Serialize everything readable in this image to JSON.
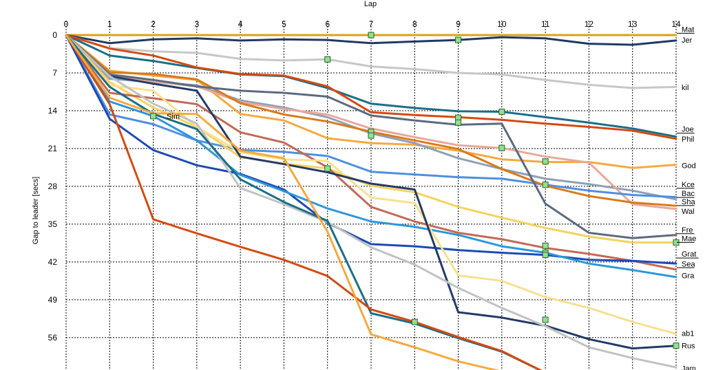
{
  "chart_data": {
    "type": "line",
    "title": "",
    "xlabel": "Lap",
    "ylabel": "Gap to leader [secs]",
    "xlim": [
      0,
      14
    ],
    "ylim": [
      0,
      62
    ],
    "x_ticks": [
      0,
      1,
      2,
      3,
      4,
      5,
      6,
      7,
      8,
      9,
      10,
      11,
      12,
      13,
      14
    ],
    "y_ticks": [
      0,
      7,
      14,
      21,
      28,
      35,
      42,
      49,
      56
    ],
    "grid": true,
    "reference_line": 0,
    "series": [
      {
        "name": "Mat",
        "color": "#d9a21b",
        "values": [
          0,
          0,
          0,
          0,
          0,
          0,
          0,
          0,
          0,
          0,
          0,
          0,
          0,
          0,
          0
        ]
      },
      {
        "name": "Jer",
        "color": "#1f3864",
        "values": [
          0,
          1.5,
          0.8,
          0.6,
          1.0,
          0.8,
          0.9,
          1.5,
          1.2,
          0.9,
          0.4,
          0.6,
          1.6,
          1.8,
          1.0
        ]
      },
      {
        "name": "kil",
        "color": "#c7c7c7",
        "values": [
          0,
          2.4,
          3.0,
          3.3,
          4.4,
          4.7,
          4.5,
          5.8,
          6.3,
          7.0,
          7.3,
          8.3,
          9.2,
          9.8,
          9.6
        ]
      },
      {
        "name": "Joe",
        "color": "#1b6e86",
        "values": [
          0,
          3.8,
          4.8,
          6.1,
          7.3,
          7.6,
          9.8,
          12.7,
          13.5,
          14.1,
          14.2,
          15.2,
          16.2,
          17.3,
          18.8
        ]
      },
      {
        "name": "Phil",
        "color": "#d44a0f",
        "values": [
          0,
          2.5,
          3.8,
          6.0,
          7.2,
          7.5,
          9.5,
          14.3,
          14.8,
          15.2,
          15.7,
          16.4,
          17.0,
          17.7,
          19.2
        ]
      },
      {
        "name": "God",
        "color": "#f4a93f",
        "values": [
          0,
          6.6,
          7.5,
          8.3,
          14.6,
          15.8,
          19.1,
          20.0,
          20.3,
          21.4,
          23.0,
          23.5,
          23.5,
          24.6,
          24.0
        ]
      },
      {
        "name": "Kce",
        "color": "#8f9fb8",
        "values": [
          0,
          8.1,
          8.7,
          9.3,
          12.1,
          13.4,
          15.2,
          18.2,
          20.0,
          22.8,
          24.8,
          26.6,
          27.6,
          28.8,
          30.4
        ]
      },
      {
        "name": "Bac",
        "color": "#e8a899",
        "values": [
          0,
          7.7,
          8.6,
          9.5,
          12.4,
          13.7,
          14.7,
          17.3,
          18.9,
          20.4,
          20.9,
          22.5,
          23.6,
          31.3,
          32.2
        ]
      },
      {
        "name": "Sha",
        "color": "#4d8fe0",
        "values": [
          0,
          14.7,
          16.5,
          19.5,
          21.3,
          21.6,
          22.4,
          25.3,
          25.8,
          26.3,
          26.6,
          27.7,
          28.8,
          29.6,
          30.0
        ]
      },
      {
        "name": "Wal",
        "color": "#d97a1a",
        "values": [
          0,
          6.9,
          7.2,
          8.2,
          12.6,
          14.7,
          16.0,
          17.9,
          19.5,
          21.1,
          24.8,
          27.9,
          29.8,
          31.0,
          31.6
        ]
      },
      {
        "name": "Fre",
        "color": "#5a6a80",
        "values": [
          0,
          7.3,
          8.3,
          9.5,
          10.3,
          10.7,
          11.4,
          14.9,
          15.8,
          16.6,
          16.4,
          31.2,
          36.6,
          37.6,
          37.0
        ]
      },
      {
        "name": "Mae",
        "color": "#f4d35e",
        "values": [
          0,
          8.7,
          13.4,
          17.0,
          22.6,
          23.8,
          24.7,
          27.9,
          29.1,
          31.8,
          33.8,
          35.7,
          37.3,
          38.4,
          38.4
        ]
      },
      {
        "name": "Grat",
        "color": "#c26a55",
        "values": [
          0,
          10.7,
          11.7,
          12.8,
          18.0,
          19.9,
          24.5,
          31.8,
          34.5,
          36.6,
          37.8,
          39.4,
          40.5,
          41.8,
          43.4
        ]
      },
      {
        "name": "Sea",
        "color": "#1c4ab5",
        "values": [
          0,
          15.5,
          21.3,
          24.1,
          25.7,
          28.6,
          34.8,
          38.7,
          39.1,
          39.8,
          40.3,
          40.7,
          41.6,
          41.8,
          42.3
        ]
      },
      {
        "name": "Gra",
        "color": "#2b97d9",
        "values": [
          0,
          12.3,
          15.0,
          19.5,
          25.9,
          28.9,
          32.1,
          34.5,
          35.5,
          37.0,
          39.1,
          40.3,
          42.3,
          43.5,
          44.8
        ]
      },
      {
        "name": "ab1",
        "color": "#f7e08f",
        "values": [
          0,
          9.3,
          10.3,
          17.0,
          21.7,
          23.0,
          23.3,
          30.1,
          31.1,
          44.5,
          45.5,
          48.5,
          50.5,
          53.1,
          55.3
        ]
      },
      {
        "name": "Rus",
        "color": "#233a66",
        "values": [
          0,
          7.6,
          9.0,
          10.3,
          22.5,
          23.9,
          25.4,
          27.5,
          28.6,
          51.3,
          52.3,
          53.8,
          56.3,
          58.0,
          57.5
        ]
      },
      {
        "name": "Jam",
        "color": "#c2c2c2",
        "values": [
          0,
          7.6,
          12.7,
          16.4,
          28.3,
          31.3,
          34.6,
          39.3,
          42.5,
          46.8,
          50.5,
          53.9,
          57.8,
          59.8,
          61.5
        ]
      },
      {
        "name": "",
        "color": "#1b6e86",
        "values": [
          0,
          9.6,
          14.6,
          17.4,
          26.7,
          30.9,
          34.4,
          51.5,
          53.4,
          56.1,
          58.6,
          62.5,
          null,
          null,
          null
        ]
      },
      {
        "name": "",
        "color": "#d44a0f",
        "values": [
          0,
          12.8,
          34.1,
          36.7,
          39.2,
          41.6,
          44.6,
          50.8,
          53.1,
          55.9,
          58.5,
          62.5,
          null,
          null,
          null
        ]
      },
      {
        "name": "",
        "color": "#f4a93f",
        "values": [
          0,
          11.6,
          14.5,
          14.6,
          21.4,
          22.8,
          36.4,
          55.4,
          57.8,
          60.4,
          62.3,
          null,
          null,
          null,
          null
        ]
      }
    ],
    "end_labels": [
      {
        "text": "Mat",
        "value": -1.1,
        "underline": true
      },
      {
        "text": "Jer",
        "value": 0.9,
        "underline": false
      },
      {
        "text": "kil",
        "value": 9.7,
        "underline": false
      },
      {
        "text": "Joe",
        "value": 17.4,
        "underline": true
      },
      {
        "text": "Phil",
        "value": 19.2,
        "underline": false
      },
      {
        "text": "God",
        "value": 24.1,
        "underline": false
      },
      {
        "text": "Kce",
        "value": 27.6,
        "underline": true
      },
      {
        "text": "Bac",
        "value": 29.3,
        "underline": true
      },
      {
        "text": "Sha",
        "value": 30.8,
        "underline": true
      },
      {
        "text": "Wal",
        "value": 32.6,
        "underline": false
      },
      {
        "text": "Fre",
        "value": 36.0,
        "underline": true
      },
      {
        "text": "Mae",
        "value": 37.6,
        "underline": true
      },
      {
        "text": "Grat",
        "value": 40.5,
        "underline": true
      },
      {
        "text": "Sea",
        "value": 42.3,
        "underline": true
      },
      {
        "text": "Gra",
        "value": 44.5,
        "underline": false
      },
      {
        "text": "ab1",
        "value": 55.2,
        "underline": false
      },
      {
        "text": "Rus",
        "value": 57.5,
        "underline": false
      },
      {
        "text": "Jam",
        "value": 61.7,
        "underline": false
      }
    ],
    "inline_labels": [
      {
        "text": "Sim",
        "x": 2.15,
        "y": 15.0
      }
    ],
    "markers": [
      {
        "x": 2,
        "y": 15.0
      },
      {
        "x": 6,
        "y": 4.5
      },
      {
        "x": 6,
        "y": 24.7
      },
      {
        "x": 7,
        "y": 0
      },
      {
        "x": 7,
        "y": 17.9
      },
      {
        "x": 7,
        "y": 18.6
      },
      {
        "x": 8,
        "y": 53.1
      },
      {
        "x": 9,
        "y": 0.9
      },
      {
        "x": 9,
        "y": 15.3
      },
      {
        "x": 9,
        "y": 16.2
      },
      {
        "x": 10,
        "y": 14.2
      },
      {
        "x": 10,
        "y": 20.9
      },
      {
        "x": 11,
        "y": 23.4
      },
      {
        "x": 11,
        "y": 27.7
      },
      {
        "x": 11,
        "y": 39.0
      },
      {
        "x": 11,
        "y": 40.3
      },
      {
        "x": 11,
        "y": 40.7
      },
      {
        "x": 11,
        "y": 52.7
      },
      {
        "x": 14,
        "y": 38.4
      },
      {
        "x": 14,
        "y": 57.5
      }
    ]
  }
}
